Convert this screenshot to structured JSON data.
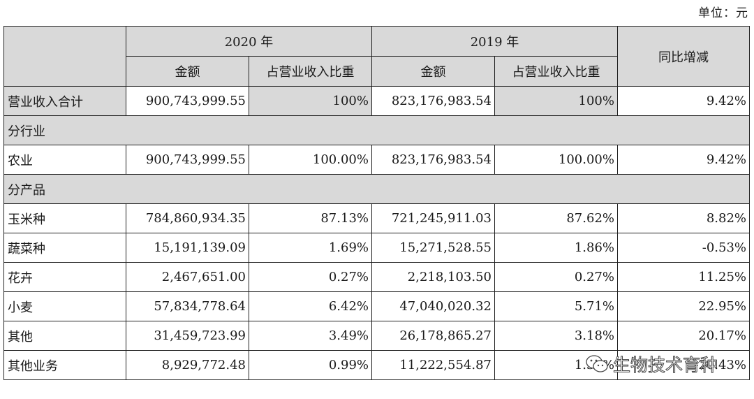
{
  "unit_label": "单位：元",
  "headers": {
    "year_2020": "2020 年",
    "year_2019": "2019 年",
    "yoy": "同比增减",
    "amount": "金额",
    "share": "占营业收入比重"
  },
  "total_row": {
    "label": "营业收入合计",
    "a2020": "900,743,999.55",
    "p2020": "100%",
    "a2019": "823,176,983.54",
    "p2019": "100%",
    "yoy": "9.42%"
  },
  "section_industry": "分行业",
  "industry_rows": [
    {
      "label": "农业",
      "a2020": "900,743,999.55",
      "p2020": "100.00%",
      "a2019": "823,176,983.54",
      "p2019": "100.00%",
      "yoy": "9.42%"
    }
  ],
  "section_product": "分产品",
  "product_rows": [
    {
      "label": "玉米种",
      "a2020": "784,860,934.35",
      "p2020": "87.13%",
      "a2019": "721,245,911.03",
      "p2019": "87.62%",
      "yoy": "8.82%"
    },
    {
      "label": "蔬菜种",
      "a2020": "15,191,139.09",
      "p2020": "1.69%",
      "a2019": "15,271,528.55",
      "p2019": "1.86%",
      "yoy": "-0.53%"
    },
    {
      "label": "花卉",
      "a2020": "2,467,651.00",
      "p2020": "0.27%",
      "a2019": "2,218,103.50",
      "p2019": "0.27%",
      "yoy": "11.25%"
    },
    {
      "label": "小麦",
      "a2020": "57,834,778.64",
      "p2020": "6.42%",
      "a2019": "47,040,020.32",
      "p2019": "5.71%",
      "yoy": "22.95%"
    },
    {
      "label": "其他",
      "a2020": "31,459,723.99",
      "p2020": "3.49%",
      "a2019": "26,178,865.27",
      "p2019": "3.18%",
      "yoy": "20.17%"
    },
    {
      "label": "其他业务",
      "a2020": "8,929,772.48",
      "p2020": "0.99%",
      "a2019": "11,222,554.87",
      "p2019": "1.36%",
      "yoy": "-20.43%"
    }
  ],
  "watermark": {
    "text": "生物技术育种",
    "icon": "wechat-icon"
  }
}
